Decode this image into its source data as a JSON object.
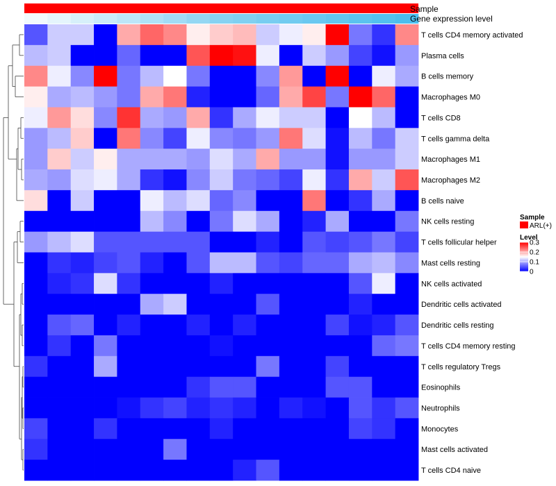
{
  "chart_data": {
    "type": "heatmap",
    "title": "",
    "annotation_rows": [
      {
        "name": "Sample",
        "label": "Sample",
        "color": "#ff0000"
      },
      {
        "name": "gene-expression-level",
        "label": "Gene expression level",
        "gradient": [
          "#f2fafd",
          "#87d2f2",
          "#4cbeed"
        ]
      }
    ],
    "rows": [
      "T cells CD4 memory activated",
      "Plasma cells",
      "B cells memory",
      "Macrophages M0",
      "T cells CD8",
      "T cells gamma delta",
      "Macrophages M1",
      "Macrophages M2",
      "B cells naive",
      "NK cells resting",
      "T cells follicular helper",
      "Mast cells resting",
      "NK cells activated",
      "Dendritic cells activated",
      "Dendritic cells resting",
      "T cells CD4 memory resting",
      "T cells regulatory  Tregs",
      "Eosinophils",
      "Neutrophils",
      "Monocytes",
      "Mast cells activated",
      "T cells CD4 naive"
    ],
    "n_columns": 17,
    "values": [
      [
        0.05,
        0.12,
        0.12,
        0.0,
        0.2,
        0.24,
        0.22,
        0.16,
        0.18,
        0.19,
        0.12,
        0.14,
        0.16,
        0.31,
        0.07,
        0.03,
        0.22
      ],
      [
        0.11,
        0.12,
        0.0,
        0.0,
        0.06,
        0.0,
        0.0,
        0.25,
        0.3,
        0.29,
        0.14,
        0.0,
        0.12,
        0.09,
        0.04,
        0.01,
        0.09
      ],
      [
        0.22,
        0.14,
        0.08,
        0.32,
        0.07,
        0.11,
        0.15,
        0.07,
        0.0,
        0.0,
        0.08,
        0.21,
        0.0,
        0.31,
        0.0,
        0.14,
        0.1
      ],
      [
        0.16,
        0.1,
        0.11,
        0.09,
        0.07,
        0.2,
        0.23,
        0.02,
        0.0,
        0.0,
        0.06,
        0.2,
        0.26,
        0.07,
        0.31,
        0.24,
        0.0
      ],
      [
        0.14,
        0.21,
        0.17,
        0.08,
        0.27,
        0.1,
        0.09,
        0.2,
        0.03,
        0.1,
        0.14,
        0.12,
        0.12,
        0.0,
        0.15,
        0.11,
        0.0
      ],
      [
        0.09,
        0.11,
        0.18,
        0.0,
        0.23,
        0.08,
        0.04,
        0.14,
        0.08,
        0.07,
        0.09,
        0.23,
        0.13,
        0.01,
        0.11,
        0.07,
        0.12
      ],
      [
        0.09,
        0.18,
        0.12,
        0.16,
        0.1,
        0.1,
        0.1,
        0.09,
        0.13,
        0.1,
        0.2,
        0.09,
        0.09,
        0.01,
        0.09,
        0.09,
        0.12
      ],
      [
        0.1,
        0.09,
        0.13,
        0.14,
        0.1,
        0.03,
        0.01,
        0.08,
        0.12,
        0.07,
        0.06,
        0.04,
        0.14,
        0.03,
        0.2,
        0.12,
        0.25
      ],
      [
        0.17,
        0.0,
        0.12,
        0.0,
        0.0,
        0.14,
        0.11,
        0.13,
        0.06,
        0.08,
        0.0,
        0.0,
        0.23,
        0.0,
        0.03,
        0.1,
        0.0
      ],
      [
        0.0,
        0.0,
        0.0,
        0.0,
        0.0,
        0.11,
        0.08,
        0.0,
        0.07,
        0.13,
        0.1,
        0.0,
        0.02,
        0.1,
        0.0,
        0.0,
        0.07
      ],
      [
        0.09,
        0.11,
        0.13,
        0.05,
        0.05,
        0.05,
        0.05,
        0.05,
        0.0,
        0.0,
        0.02,
        0.0,
        0.05,
        0.04,
        0.05,
        0.07,
        0.04
      ],
      [
        0.0,
        0.03,
        0.02,
        0.04,
        0.05,
        0.02,
        0.0,
        0.05,
        0.11,
        0.11,
        0.05,
        0.04,
        0.06,
        0.06,
        0.1,
        0.11,
        0.08
      ],
      [
        0.0,
        0.02,
        0.03,
        0.13,
        0.03,
        0.0,
        0.0,
        0.0,
        0.02,
        0.0,
        0.0,
        0.0,
        0.0,
        0.0,
        0.05,
        0.14,
        0.0
      ],
      [
        0.0,
        0.0,
        0.0,
        0.0,
        0.0,
        0.1,
        0.12,
        0.0,
        0.0,
        0.0,
        0.05,
        0.0,
        0.0,
        0.0,
        0.02,
        0.0,
        0.0
      ],
      [
        0.0,
        0.05,
        0.06,
        0.0,
        0.02,
        0.0,
        0.0,
        0.02,
        0.0,
        0.02,
        0.0,
        0.0,
        0.0,
        0.04,
        0.01,
        0.02,
        0.05
      ],
      [
        0.0,
        0.03,
        0.0,
        0.07,
        0.0,
        0.0,
        0.0,
        0.0,
        0.01,
        0.0,
        0.0,
        0.0,
        0.0,
        0.0,
        0.0,
        0.06,
        0.07
      ],
      [
        0.03,
        0.0,
        0.0,
        0.1,
        0.0,
        0.0,
        0.0,
        0.0,
        0.0,
        0.0,
        0.07,
        0.0,
        0.0,
        0.04,
        0.0,
        0.0,
        0.0
      ],
      [
        0.0,
        0.0,
        0.0,
        0.0,
        0.0,
        0.0,
        0.0,
        0.03,
        0.05,
        0.05,
        0.0,
        0.0,
        0.0,
        0.05,
        0.05,
        0.0,
        0.0
      ],
      [
        0.0,
        0.0,
        0.0,
        0.0,
        0.01,
        0.03,
        0.04,
        0.02,
        0.03,
        0.02,
        0.0,
        0.02,
        0.01,
        0.0,
        0.05,
        0.03,
        0.05
      ],
      [
        0.04,
        0.0,
        0.0,
        0.03,
        0.0,
        0.0,
        0.0,
        0.0,
        0.02,
        0.0,
        0.0,
        0.0,
        0.0,
        0.0,
        0.04,
        0.03,
        0.0
      ],
      [
        0.03,
        0.0,
        0.0,
        0.0,
        0.0,
        0.0,
        0.07,
        0.0,
        0.0,
        0.0,
        0.0,
        0.0,
        0.0,
        0.0,
        0.0,
        0.0,
        0.0
      ],
      [
        0.0,
        0.0,
        0.0,
        0.0,
        0.0,
        0.0,
        0.0,
        0.0,
        0.0,
        0.02,
        0.05,
        0.0,
        0.0,
        0.0,
        0.0,
        0.0,
        0.0
      ]
    ],
    "color_scale": {
      "domain": [
        0,
        0.15,
        0.3
      ],
      "colors": [
        "#0000ff",
        "#ffffff",
        "#ff0000"
      ]
    },
    "legend": {
      "sample_title": "Sample",
      "sample_entry": "ARL(+)",
      "sample_color": "#ff0000",
      "level_title": "Level",
      "level_ticks": [
        {
          "value": 0.3,
          "label": "0.3"
        },
        {
          "value": 0.2,
          "label": "0.2"
        },
        {
          "value": 0.1,
          "label": "0.1"
        },
        {
          "value": 0.0,
          "label": "0"
        }
      ],
      "position": "right"
    }
  }
}
